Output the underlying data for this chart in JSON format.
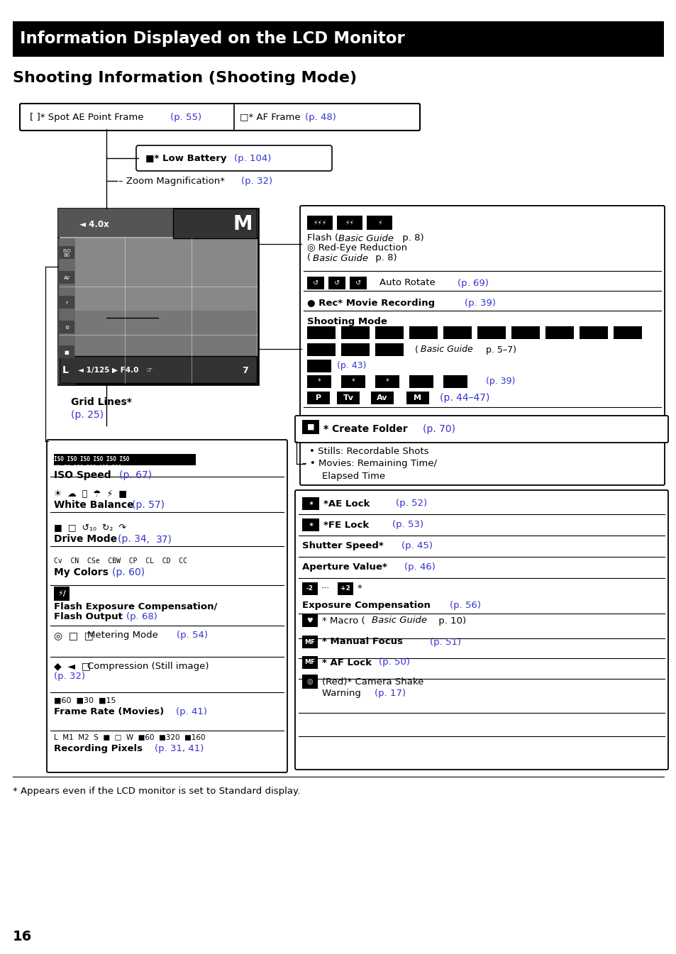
{
  "title": "Information Displayed on the LCD Monitor",
  "subtitle": "Shooting Information (Shooting Mode)",
  "bg_color": "#ffffff",
  "title_bg": "#000000",
  "title_fg": "#ffffff",
  "blue": "#3333cc",
  "black": "#000000",
  "page_number": "16",
  "footer_note": "* Appears even if the LCD monitor is set to Standard display."
}
